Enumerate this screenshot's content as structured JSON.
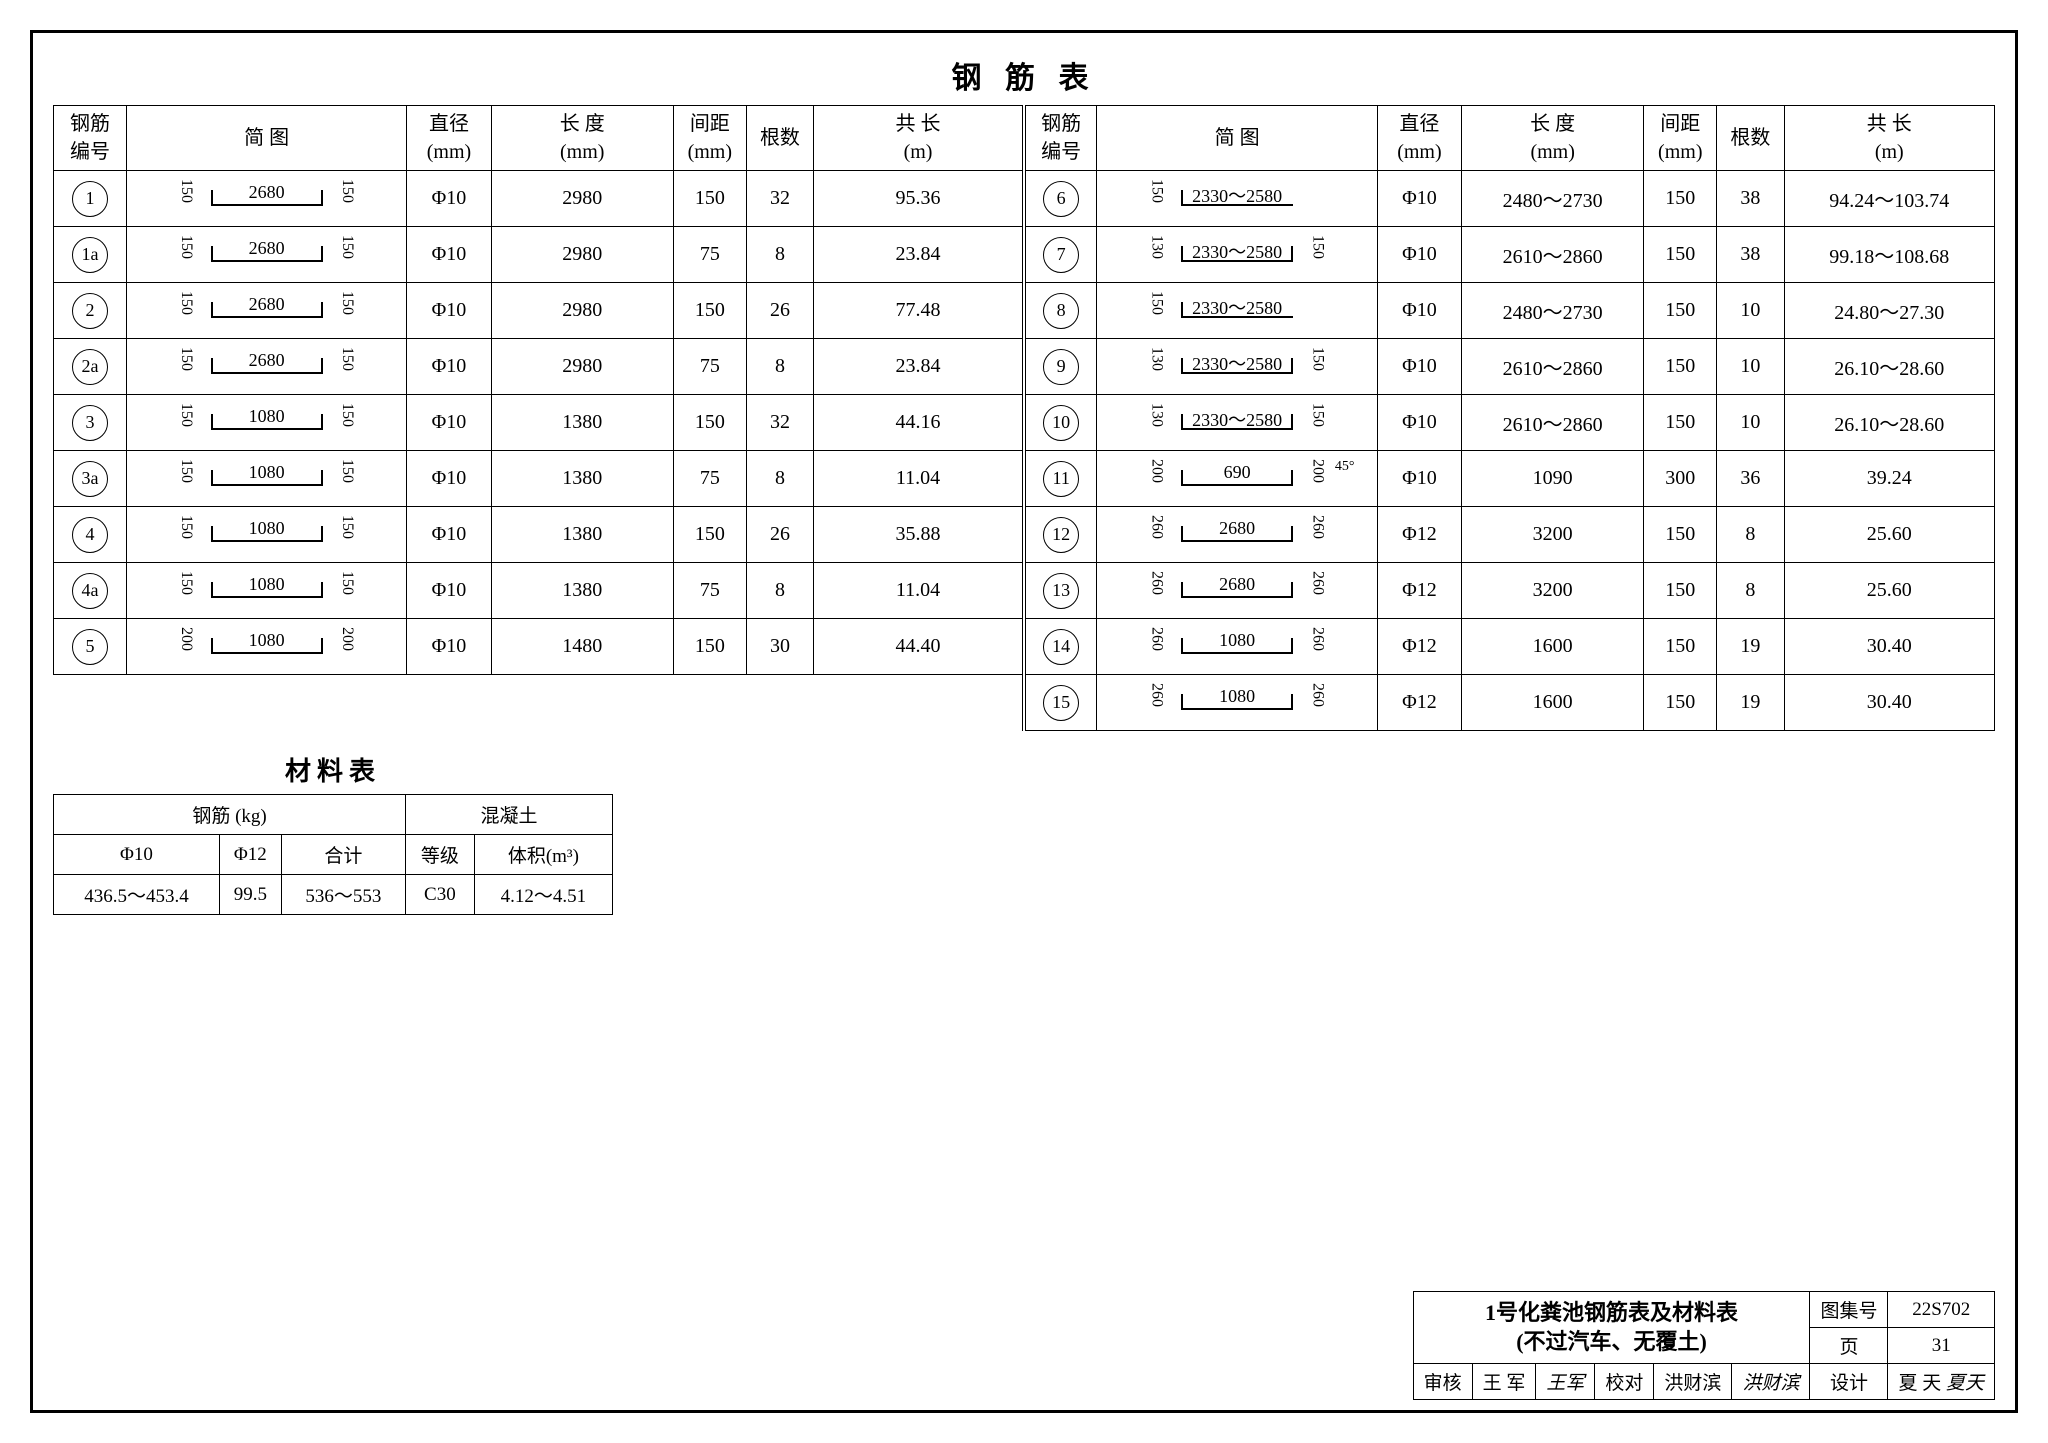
{
  "title": "钢 筋 表",
  "headers": {
    "id": "钢筋\n编号",
    "shape": "简   图",
    "dia": "直径\n(mm)",
    "len": "长 度\n(mm)",
    "sp": "间距\n(mm)",
    "cnt": "根数",
    "tot": "共 长\n(m)"
  },
  "left_rows": [
    {
      "id": "1",
      "shape_main": "2680",
      "shape_l": "150",
      "shape_r": "150",
      "dia": "Φ10",
      "len": "2980",
      "sp": "150",
      "cnt": "32",
      "tot": "95.36"
    },
    {
      "id": "1a",
      "shape_main": "2680",
      "shape_l": "150",
      "shape_r": "150",
      "dia": "Φ10",
      "len": "2980",
      "sp": "75",
      "cnt": "8",
      "tot": "23.84"
    },
    {
      "id": "2",
      "shape_main": "2680",
      "shape_l": "150",
      "shape_r": "150",
      "dia": "Φ10",
      "len": "2980",
      "sp": "150",
      "cnt": "26",
      "tot": "77.48"
    },
    {
      "id": "2a",
      "shape_main": "2680",
      "shape_l": "150",
      "shape_r": "150",
      "dia": "Φ10",
      "len": "2980",
      "sp": "75",
      "cnt": "8",
      "tot": "23.84"
    },
    {
      "id": "3",
      "shape_main": "1080",
      "shape_l": "150",
      "shape_r": "150",
      "dia": "Φ10",
      "len": "1380",
      "sp": "150",
      "cnt": "32",
      "tot": "44.16"
    },
    {
      "id": "3a",
      "shape_main": "1080",
      "shape_l": "150",
      "shape_r": "150",
      "dia": "Φ10",
      "len": "1380",
      "sp": "75",
      "cnt": "8",
      "tot": "11.04"
    },
    {
      "id": "4",
      "shape_main": "1080",
      "shape_l": "150",
      "shape_r": "150",
      "dia": "Φ10",
      "len": "1380",
      "sp": "150",
      "cnt": "26",
      "tot": "35.88"
    },
    {
      "id": "4a",
      "shape_main": "1080",
      "shape_l": "150",
      "shape_r": "150",
      "dia": "Φ10",
      "len": "1380",
      "sp": "75",
      "cnt": "8",
      "tot": "11.04"
    },
    {
      "id": "5",
      "shape_main": "1080",
      "shape_l": "200",
      "shape_r": "200",
      "dia": "Φ10",
      "len": "1480",
      "sp": "150",
      "cnt": "30",
      "tot": "44.40"
    }
  ],
  "right_rows": [
    {
      "id": "6",
      "shape_main": "2330～2580",
      "shape_l": "150",
      "shape_r": "",
      "dia": "Φ10",
      "len": "2480～2730",
      "sp": "150",
      "cnt": "38",
      "tot": "94.24～103.74"
    },
    {
      "id": "7",
      "shape_main": "2330～2580",
      "shape_l": "130",
      "shape_r": "150",
      "dia": "Φ10",
      "len": "2610～2860",
      "sp": "150",
      "cnt": "38",
      "tot": "99.18～108.68"
    },
    {
      "id": "8",
      "shape_main": "2330～2580",
      "shape_l": "150",
      "shape_r": "",
      "dia": "Φ10",
      "len": "2480～2730",
      "sp": "150",
      "cnt": "10",
      "tot": "24.80～27.30"
    },
    {
      "id": "9",
      "shape_main": "2330～2580",
      "shape_l": "130",
      "shape_r": "150",
      "dia": "Φ10",
      "len": "2610～2860",
      "sp": "150",
      "cnt": "10",
      "tot": "26.10～28.60"
    },
    {
      "id": "10",
      "shape_main": "2330～2580",
      "shape_l": "130",
      "shape_r": "150",
      "dia": "Φ10",
      "len": "2610～2860",
      "sp": "150",
      "cnt": "10",
      "tot": "26.10～28.60"
    },
    {
      "id": "11",
      "shape_main": "690",
      "shape_l": "200",
      "shape_r": "200",
      "extra": "45°",
      "dia": "Φ10",
      "len": "1090",
      "sp": "300",
      "cnt": "36",
      "tot": "39.24"
    },
    {
      "id": "12",
      "shape_main": "2680",
      "shape_l": "260",
      "shape_r": "260",
      "dia": "Φ12",
      "len": "3200",
      "sp": "150",
      "cnt": "8",
      "tot": "25.60"
    },
    {
      "id": "13",
      "shape_main": "2680",
      "shape_l": "260",
      "shape_r": "260",
      "dia": "Φ12",
      "len": "3200",
      "sp": "150",
      "cnt": "8",
      "tot": "25.60"
    },
    {
      "id": "14",
      "shape_main": "1080",
      "shape_l": "260",
      "shape_r": "260",
      "dia": "Φ12",
      "len": "1600",
      "sp": "150",
      "cnt": "19",
      "tot": "30.40"
    },
    {
      "id": "15",
      "shape_main": "1080",
      "shape_l": "260",
      "shape_r": "260",
      "dia": "Φ12",
      "len": "1600",
      "sp": "150",
      "cnt": "19",
      "tot": "30.40"
    }
  ],
  "mat_title": "材料表",
  "mat_headers": {
    "rebar": "钢筋 (kg)",
    "concrete": "混凝土",
    "d10": "Φ10",
    "d12": "Φ12",
    "total": "合计",
    "grade": "等级",
    "vol": "体积(m³)"
  },
  "mat_row": {
    "d10": "436.5～453.4",
    "d12": "99.5",
    "total": "536～553",
    "grade": "C30",
    "vol": "4.12～4.51"
  },
  "titleblock": {
    "drawing_title_1": "1号化粪池钢筋表及材料表",
    "drawing_title_2": "(不过汽车、无覆土)",
    "atlas_label": "图集号",
    "atlas_no": "22S702",
    "page_label": "页",
    "page_no": "31",
    "review_label": "审核",
    "review_name": "王 军",
    "review_sig": "王军",
    "check_label": "校对",
    "check_name": "洪财滨",
    "check_sig": "洪财滨",
    "design_label": "设计",
    "design_name": "夏 天",
    "design_sig": "夏天"
  }
}
